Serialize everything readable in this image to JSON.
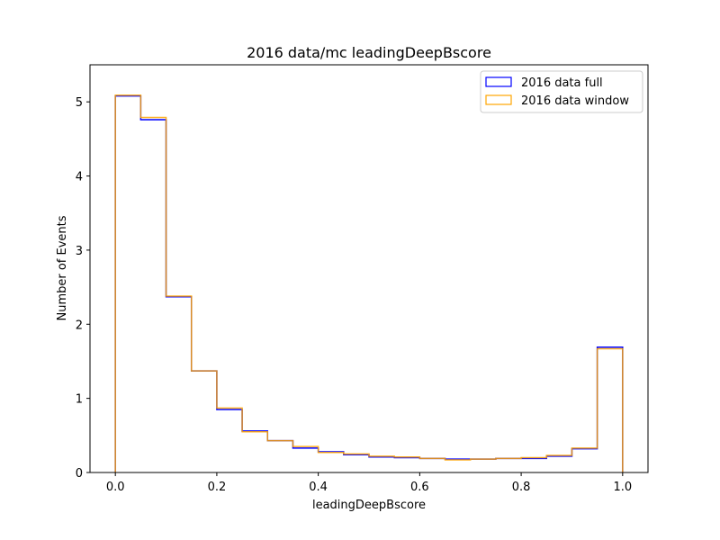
{
  "chart_data": {
    "type": "histogram-step",
    "title": "2016 data/mc leadingDeepBscore",
    "xlabel": "leadingDeepBscore",
    "ylabel": "Number of Events",
    "xlim": [
      -0.05,
      1.05
    ],
    "ylim": [
      0,
      5.5
    ],
    "xticks": [
      "0.0",
      "0.2",
      "0.4",
      "0.6",
      "0.8",
      "1.0"
    ],
    "yticks": [
      "0",
      "1",
      "2",
      "3",
      "4",
      "5"
    ],
    "grid": false,
    "legend_position": "top-right",
    "bin_edges": [
      0.0,
      0.05,
      0.1,
      0.15,
      0.2,
      0.25,
      0.3,
      0.35,
      0.4,
      0.45,
      0.5,
      0.55,
      0.6,
      0.65,
      0.7,
      0.75,
      0.8,
      0.85,
      0.9,
      0.95,
      1.0
    ],
    "series": [
      {
        "name": "2016 data full",
        "color": "#0000ff",
        "values": [
          5.08,
          4.76,
          2.37,
          1.37,
          0.85,
          0.56,
          0.43,
          0.33,
          0.28,
          0.24,
          0.21,
          0.2,
          0.19,
          0.18,
          0.18,
          0.19,
          0.19,
          0.22,
          0.32,
          1.69
        ]
      },
      {
        "name": "2016 data window",
        "color": "#ffa500",
        "values": [
          5.09,
          4.79,
          2.38,
          1.37,
          0.87,
          0.55,
          0.43,
          0.35,
          0.27,
          0.25,
          0.22,
          0.21,
          0.19,
          0.17,
          0.18,
          0.19,
          0.2,
          0.23,
          0.33,
          1.67
        ]
      }
    ]
  }
}
